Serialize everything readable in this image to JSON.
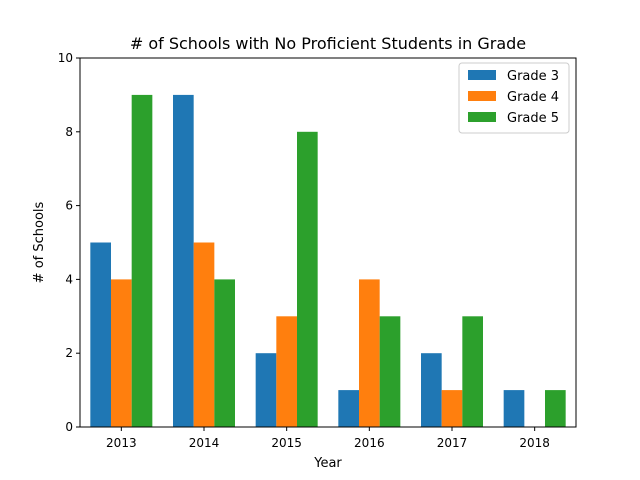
{
  "chart_data": {
    "type": "bar",
    "title": "# of Schools with No Proficient Students in Grade",
    "xlabel": "Year",
    "ylabel": "# of Schools",
    "categories": [
      "2013",
      "2014",
      "2015",
      "2016",
      "2017",
      "2018"
    ],
    "series": [
      {
        "name": "Grade 3",
        "values": [
          5,
          9,
          2,
          1,
          2,
          1
        ],
        "color": "#1f77b4"
      },
      {
        "name": "Grade 4",
        "values": [
          4,
          5,
          3,
          4,
          1,
          0
        ],
        "color": "#ff7f0e"
      },
      {
        "name": "Grade 5",
        "values": [
          9,
          4,
          8,
          3,
          3,
          1
        ],
        "color": "#2ca02c"
      }
    ],
    "ylim": [
      0,
      10
    ],
    "yticks": [
      "0",
      "2",
      "4",
      "6",
      "8",
      "10"
    ],
    "grid": false,
    "legend_position": "top-right"
  }
}
